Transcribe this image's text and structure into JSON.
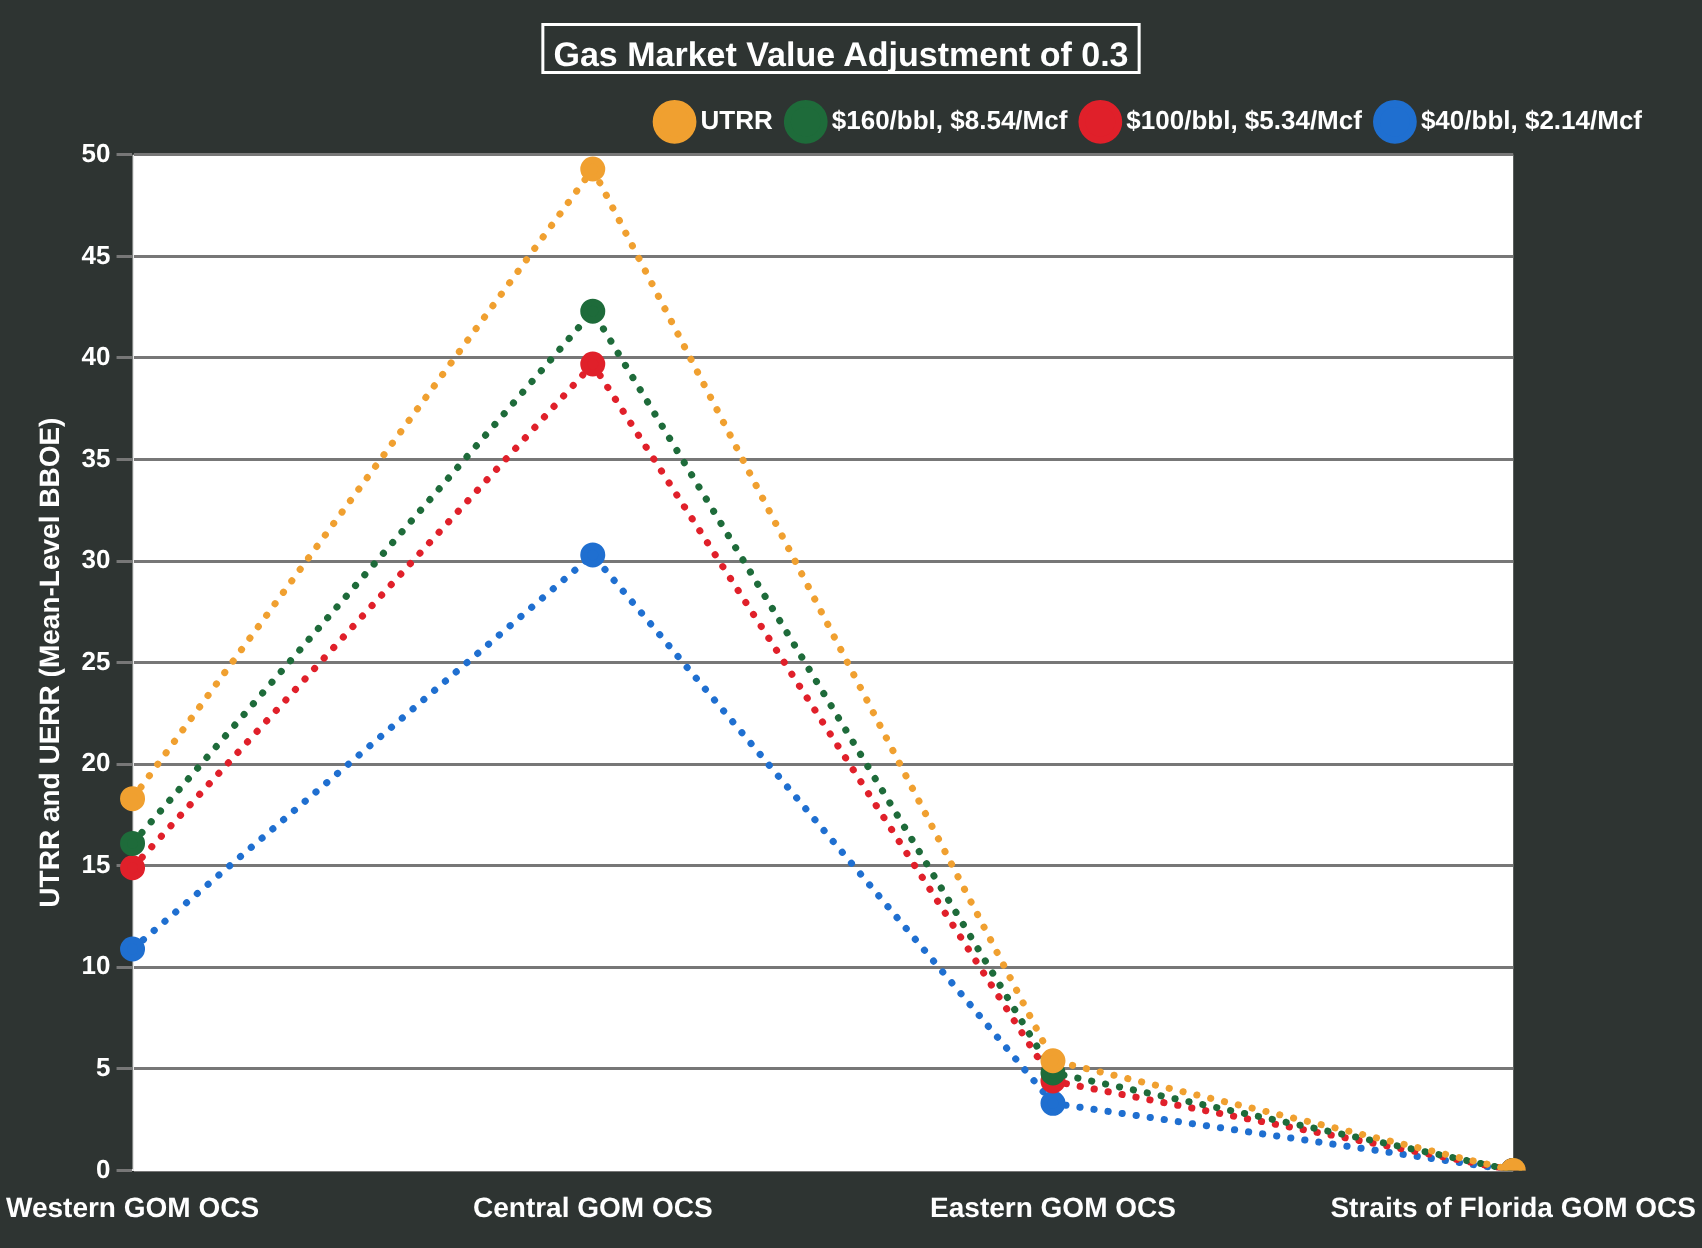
{
  "chart_data": {
    "type": "line",
    "title": "Gas Market Value Adjustment of 0.3",
    "ylabel": "UTRR and UERR (Mean-Level BBOE)",
    "categories": [
      "Western GOM OCS",
      "Central GOM OCS",
      "Eastern GOM OCS",
      "Straits of Florida GOM OCS"
    ],
    "series": [
      {
        "name": "UTRR",
        "color": "#f0a030",
        "values": [
          18.3,
          49.3,
          5.4,
          0
        ]
      },
      {
        "name": "$160/bbl, $8.54/Mcf",
        "color": "#1e6b3a",
        "values": [
          16.1,
          42.3,
          4.8,
          0
        ]
      },
      {
        "name": "$100/bbl, $5.34/Mcf",
        "color": "#e0202a",
        "values": [
          14.9,
          39.7,
          4.4,
          0
        ]
      },
      {
        "name": "$40/bbl, $2.14/Mcf",
        "color": "#1f6fd0",
        "values": [
          10.9,
          30.3,
          3.3,
          0
        ]
      }
    ],
    "ylim": [
      0,
      50
    ],
    "yticks": [
      0,
      5,
      10,
      15,
      20,
      25,
      30,
      35,
      40,
      45,
      50
    ],
    "grid": "y",
    "legend": "top right",
    "marker": "circle",
    "line_style": "dotted"
  }
}
